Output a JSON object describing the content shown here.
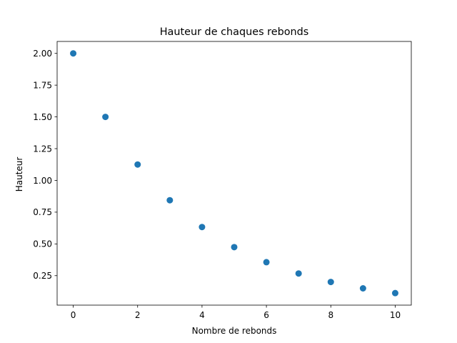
{
  "chart_data": {
    "type": "scatter",
    "title": "Hauteur de chaques rebonds",
    "xlabel": "Nombre de rebonds",
    "ylabel": "Hauteur",
    "x": [
      0,
      1,
      2,
      3,
      4,
      5,
      6,
      7,
      8,
      9,
      10
    ],
    "y": [
      2.0,
      1.5,
      1.125,
      0.84375,
      0.6328,
      0.4746,
      0.356,
      0.267,
      0.2002,
      0.1502,
      0.1126
    ],
    "xlim": [
      -0.5,
      10.5
    ],
    "ylim": [
      0.018,
      2.094
    ],
    "xticks": [
      0,
      2,
      4,
      6,
      8,
      10
    ],
    "xtick_labels": [
      "0",
      "2",
      "4",
      "6",
      "8",
      "10"
    ],
    "yticks": [
      0.25,
      0.5,
      0.75,
      1.0,
      1.25,
      1.5,
      1.75,
      2.0
    ],
    "ytick_labels": [
      "0.25",
      "0.50",
      "0.75",
      "1.00",
      "1.25",
      "1.50",
      "1.75",
      "2.00"
    ],
    "grid": false,
    "legend": "none",
    "marker_color": "#1f77b4"
  }
}
